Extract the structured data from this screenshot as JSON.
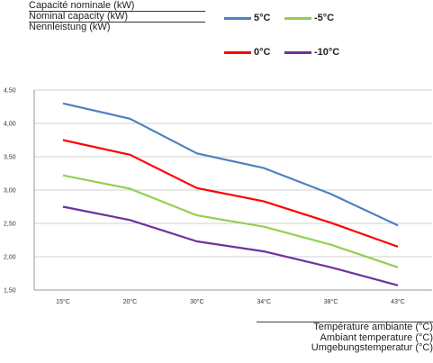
{
  "chart_data": {
    "type": "line",
    "ylabel": [
      "Capacité nominale (kW)",
      "Nominal capacity (kW)",
      "Nennleistung (kW)"
    ],
    "xlabel": [
      "Température ambiante (°C)",
      "Ambiant temperature (°C)",
      "Umgebungstemperatur (°C)"
    ],
    "categories": [
      "15°C",
      "20°C",
      "30°C",
      "34°C",
      "38°C",
      "43°C"
    ],
    "y_ticks": [
      "1,50",
      "2,00",
      "2,50",
      "3,00",
      "3,50",
      "4,00",
      "4,50"
    ],
    "ylim": [
      1.5,
      4.5
    ],
    "grid": "horizontal",
    "legend_position": "top-right",
    "series": [
      {
        "name": "5°C",
        "color": "#4f81bd",
        "values": [
          4.3,
          4.07,
          3.55,
          3.33,
          2.94,
          2.47
        ]
      },
      {
        "name": "0°C",
        "color": "#ff0000",
        "values": [
          3.75,
          3.53,
          3.03,
          2.83,
          2.51,
          2.15
        ]
      },
      {
        "name": "-5°C",
        "color": "#92d050",
        "values": [
          3.22,
          3.02,
          2.62,
          2.45,
          2.18,
          1.84
        ]
      },
      {
        "name": "-10°C",
        "color": "#7030a0",
        "values": [
          2.75,
          2.55,
          2.23,
          2.08,
          1.84,
          1.57
        ]
      }
    ]
  }
}
